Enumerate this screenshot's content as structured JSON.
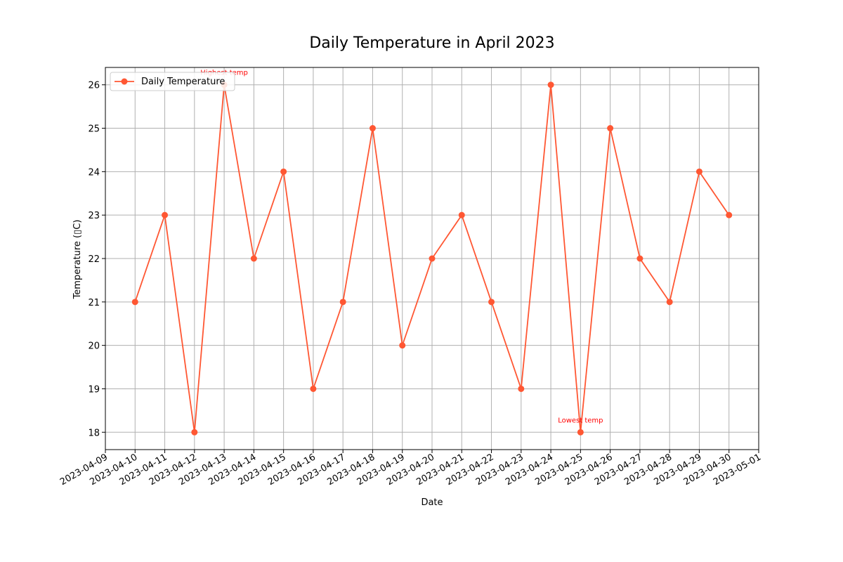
{
  "chart_data": {
    "type": "line",
    "title": "Daily Temperature in April 2023",
    "xlabel": "Date",
    "ylabel": "Temperature (▯C)",
    "x": [
      "2023-04-10",
      "2023-04-11",
      "2023-04-12",
      "2023-04-13",
      "2023-04-14",
      "2023-04-15",
      "2023-04-16",
      "2023-04-17",
      "2023-04-18",
      "2023-04-19",
      "2023-04-20",
      "2023-04-21",
      "2023-04-22",
      "2023-04-23",
      "2023-04-24",
      "2023-04-25",
      "2023-04-26",
      "2023-04-27",
      "2023-04-28",
      "2023-04-29",
      "2023-04-30"
    ],
    "x_ticks": [
      "2023-04-09",
      "2023-04-10",
      "2023-04-11",
      "2023-04-12",
      "2023-04-13",
      "2023-04-14",
      "2023-04-15",
      "2023-04-16",
      "2023-04-17",
      "2023-04-18",
      "2023-04-19",
      "2023-04-20",
      "2023-04-21",
      "2023-04-22",
      "2023-04-23",
      "2023-04-24",
      "2023-04-25",
      "2023-04-26",
      "2023-04-27",
      "2023-04-28",
      "2023-04-29",
      "2023-04-30",
      "2023-05-01"
    ],
    "xlim": [
      "2023-04-09",
      "2023-05-01"
    ],
    "y_ticks": [
      18,
      19,
      20,
      21,
      22,
      23,
      24,
      25,
      26
    ],
    "ylim": [
      17.6,
      26.4
    ],
    "grid": true,
    "legend_position": "top-left",
    "series": [
      {
        "name": "Daily Temperature",
        "color": "#ff5733",
        "marker": "circle",
        "values": [
          21,
          23,
          18,
          26,
          22,
          24,
          19,
          21,
          25,
          20,
          22,
          23,
          21,
          19,
          26,
          18,
          25,
          22,
          21,
          24,
          23
        ]
      }
    ],
    "annotations": [
      {
        "text": "Highest temp",
        "x": "2023-04-13",
        "y": 26,
        "color": "#ff0000"
      },
      {
        "text": "Lowest temp",
        "x": "2023-04-25",
        "y": 18,
        "color": "#ff0000"
      }
    ]
  }
}
